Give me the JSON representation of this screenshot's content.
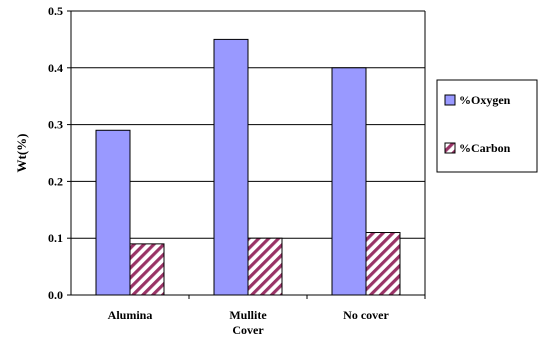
{
  "chart_data": {
    "type": "bar",
    "title": "",
    "xlabel": "",
    "ylabel": "Wt(%)",
    "ylim": [
      0,
      0.5
    ],
    "yticks": [
      "0.0",
      "0.1",
      "0.2",
      "0.3",
      "0.4",
      "0.5"
    ],
    "grid": true,
    "legend_position": "right",
    "categories": [
      [
        "Alumina"
      ],
      [
        "Mullite",
        "Cover"
      ],
      [
        "No cover"
      ]
    ],
    "series": [
      {
        "name": "%Oxygen",
        "values": [
          0.29,
          0.45,
          0.4
        ],
        "color": "#9999ff",
        "pattern": "solid"
      },
      {
        "name": "%Carbon",
        "values": [
          0.09,
          0.1,
          0.11
        ],
        "color": "#993366",
        "pattern": "diagonal-hatch"
      }
    ]
  }
}
